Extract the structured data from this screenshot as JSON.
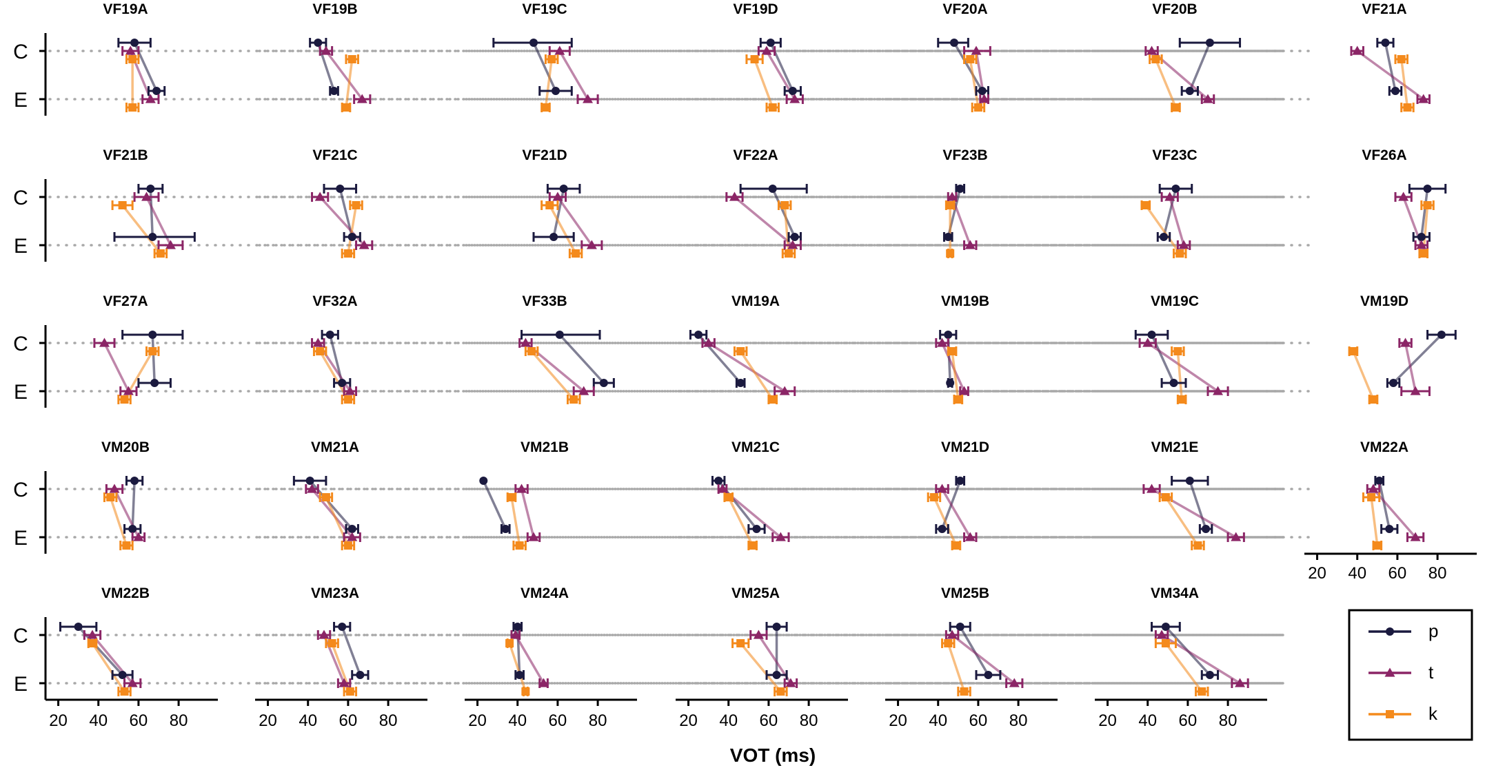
{
  "chart_data": {
    "type": "dot-range",
    "xlabel": "VOT (ms)",
    "categories": [
      "C",
      "E"
    ],
    "x_ticks": [
      "20",
      "40",
      "60",
      "80"
    ],
    "xlim": [
      15,
      92
    ],
    "series_meta": [
      {
        "name": "p",
        "color": "#1b1a3f",
        "marker": "circle"
      },
      {
        "name": "t",
        "color": "#8b2566",
        "marker": "triangle"
      },
      {
        "name": "k",
        "color": "#f48a1c",
        "marker": "square"
      }
    ],
    "panels": [
      {
        "title": "VF19A",
        "p": [
          [
            58,
            50,
            66
          ],
          [
            69,
            65,
            73
          ]
        ],
        "t": [
          [
            56,
            52,
            60
          ],
          [
            66,
            62,
            70
          ]
        ],
        "k": [
          [
            57,
            54,
            60
          ],
          [
            57,
            54,
            60
          ]
        ]
      },
      {
        "title": "VF19B",
        "p": [
          [
            45,
            41,
            49
          ],
          [
            53,
            51,
            55
          ]
        ],
        "t": [
          [
            49,
            46,
            52
          ],
          [
            67,
            63,
            71
          ]
        ],
        "k": [
          [
            62,
            59,
            65
          ],
          [
            59,
            57,
            61
          ]
        ]
      },
      {
        "title": "VF19C",
        "p": [
          [
            48,
            28,
            67
          ],
          [
            59,
            51,
            67
          ]
        ],
        "t": [
          [
            61,
            56,
            66
          ],
          [
            75,
            70,
            80
          ]
        ],
        "k": [
          [
            57,
            54,
            60
          ],
          [
            54,
            52,
            56
          ]
        ]
      },
      {
        "title": "VF19D",
        "p": [
          [
            61,
            56,
            66
          ],
          [
            72,
            68,
            76
          ]
        ],
        "t": [
          [
            59,
            55,
            63
          ],
          [
            73,
            69,
            77
          ]
        ],
        "k": [
          [
            53,
            49,
            57
          ],
          [
            62,
            59,
            65
          ]
        ]
      },
      {
        "title": "VF20A",
        "p": [
          [
            48,
            40,
            55
          ],
          [
            62,
            59,
            65
          ]
        ],
        "t": [
          [
            59,
            53,
            66
          ],
          [
            63,
            61,
            65
          ]
        ],
        "k": [
          [
            56,
            53,
            59
          ],
          [
            60,
            57,
            63
          ]
        ]
      },
      {
        "title": "VF20B",
        "p": [
          [
            71,
            56,
            86
          ],
          [
            61,
            57,
            65
          ]
        ],
        "t": [
          [
            42,
            39,
            45
          ],
          [
            70,
            67,
            73
          ]
        ],
        "k": [
          [
            44,
            41,
            47
          ],
          [
            54,
            52,
            56
          ]
        ]
      },
      {
        "title": "VF21A",
        "p": [
          [
            54,
            50,
            58
          ],
          [
            59,
            56,
            62
          ]
        ],
        "t": [
          [
            40,
            37,
            43
          ],
          [
            73,
            70,
            76
          ]
        ],
        "k": [
          [
            62,
            59,
            65
          ],
          [
            65,
            62,
            68
          ]
        ]
      },
      {
        "title": "VF21B",
        "p": [
          [
            66,
            60,
            72
          ],
          [
            67,
            48,
            88
          ]
        ],
        "t": [
          [
            64,
            58,
            70
          ],
          [
            76,
            70,
            82
          ]
        ],
        "k": [
          [
            52,
            47,
            57
          ],
          [
            71,
            68,
            74
          ]
        ]
      },
      {
        "title": "VF21C",
        "p": [
          [
            56,
            48,
            64
          ],
          [
            62,
            58,
            66
          ]
        ],
        "t": [
          [
            46,
            42,
            50
          ],
          [
            68,
            64,
            72
          ]
        ],
        "k": [
          [
            64,
            61,
            67
          ],
          [
            60,
            57,
            63
          ]
        ]
      },
      {
        "title": "VF21D",
        "p": [
          [
            63,
            55,
            71
          ],
          [
            58,
            48,
            68
          ]
        ],
        "t": [
          [
            60,
            56,
            64
          ],
          [
            77,
            72,
            82
          ]
        ],
        "k": [
          [
            56,
            52,
            60
          ],
          [
            69,
            66,
            72
          ]
        ]
      },
      {
        "title": "VF22A",
        "p": [
          [
            62,
            46,
            79
          ],
          [
            73,
            70,
            76
          ]
        ],
        "t": [
          [
            43,
            39,
            47
          ],
          [
            72,
            68,
            76
          ]
        ],
        "k": [
          [
            68,
            65,
            71
          ],
          [
            70,
            67,
            73
          ]
        ]
      },
      {
        "title": "VF23B",
        "p": [
          [
            51,
            49,
            53
          ],
          [
            45,
            43,
            47
          ]
        ],
        "t": [
          [
            47,
            45,
            49
          ],
          [
            56,
            53,
            59
          ]
        ],
        "k": [
          [
            46,
            44,
            48
          ],
          [
            46,
            45,
            47
          ]
        ]
      },
      {
        "title": "VF23C",
        "p": [
          [
            54,
            46,
            62
          ],
          [
            48,
            45,
            51
          ]
        ],
        "t": [
          [
            51,
            47,
            55
          ],
          [
            58,
            55,
            61
          ]
        ],
        "k": [
          [
            39,
            37,
            41
          ],
          [
            56,
            53,
            59
          ]
        ]
      },
      {
        "title": "VF26A",
        "p": [
          [
            75,
            66,
            84
          ],
          [
            72,
            68,
            76
          ]
        ],
        "t": [
          [
            63,
            59,
            67
          ],
          [
            72,
            69,
            75
          ]
        ],
        "k": [
          [
            75,
            72,
            78
          ],
          [
            73,
            71,
            75
          ]
        ]
      },
      {
        "title": "VF27A",
        "p": [
          [
            67,
            52,
            82
          ],
          [
            68,
            60,
            76
          ]
        ],
        "t": [
          [
            43,
            38,
            48
          ],
          [
            55,
            51,
            59
          ]
        ],
        "k": [
          [
            67,
            64,
            70
          ],
          [
            53,
            50,
            56
          ]
        ]
      },
      {
        "title": "VF32A",
        "p": [
          [
            51,
            47,
            55
          ],
          [
            57,
            53,
            61
          ]
        ],
        "t": [
          [
            45,
            42,
            48
          ],
          [
            61,
            58,
            64
          ]
        ],
        "k": [
          [
            46,
            43,
            49
          ],
          [
            60,
            57,
            63
          ]
        ]
      },
      {
        "title": "VF33B",
        "p": [
          [
            61,
            42,
            81
          ],
          [
            83,
            78,
            88
          ]
        ],
        "t": [
          [
            44,
            41,
            47
          ],
          [
            73,
            68,
            78
          ]
        ],
        "k": [
          [
            47,
            44,
            50
          ],
          [
            68,
            65,
            71
          ]
        ]
      },
      {
        "title": "VM19A",
        "p": [
          [
            25,
            21,
            29
          ],
          [
            46,
            44,
            48
          ]
        ],
        "t": [
          [
            30,
            27,
            33
          ],
          [
            68,
            63,
            73
          ]
        ],
        "k": [
          [
            46,
            43,
            49
          ],
          [
            62,
            60,
            64
          ]
        ]
      },
      {
        "title": "VM19B",
        "p": [
          [
            45,
            41,
            49
          ],
          [
            46,
            45,
            47
          ]
        ],
        "t": [
          [
            42,
            39,
            45
          ],
          [
            53,
            51,
            55
          ]
        ],
        "k": [
          [
            47,
            45,
            49
          ],
          [
            50,
            48,
            52
          ]
        ]
      },
      {
        "title": "VM19C",
        "p": [
          [
            42,
            34,
            50
          ],
          [
            53,
            47,
            59
          ]
        ],
        "t": [
          [
            40,
            36,
            44
          ],
          [
            75,
            70,
            80
          ]
        ],
        "k": [
          [
            55,
            52,
            58
          ],
          [
            57,
            55,
            59
          ]
        ]
      },
      {
        "title": "VM19D",
        "p": [
          [
            82,
            75,
            89
          ],
          [
            58,
            55,
            61
          ]
        ],
        "t": [
          [
            64,
            61,
            67
          ],
          [
            69,
            62,
            76
          ]
        ],
        "k": [
          [
            38,
            36,
            40
          ],
          [
            48,
            46,
            50
          ]
        ]
      },
      {
        "title": "VM20B",
        "p": [
          [
            58,
            54,
            62
          ],
          [
            57,
            53,
            61
          ]
        ],
        "t": [
          [
            48,
            44,
            52
          ],
          [
            60,
            57,
            63
          ]
        ],
        "k": [
          [
            46,
            43,
            49
          ],
          [
            54,
            51,
            57
          ]
        ]
      },
      {
        "title": "VM21A",
        "p": [
          [
            41,
            33,
            49
          ],
          [
            62,
            59,
            65
          ]
        ],
        "t": [
          [
            42,
            39,
            45
          ],
          [
            62,
            58,
            66
          ]
        ],
        "k": [
          [
            49,
            46,
            52
          ],
          [
            60,
            57,
            63
          ]
        ]
      },
      {
        "title": "VM21B",
        "p": [
          [
            23,
            23,
            23
          ],
          [
            34,
            32,
            36
          ]
        ],
        "t": [
          [
            42,
            39,
            45
          ],
          [
            48,
            45,
            51
          ]
        ],
        "k": [
          [
            37,
            35,
            39
          ],
          [
            41,
            38,
            44
          ]
        ]
      },
      {
        "title": "VM21C",
        "p": [
          [
            35,
            32,
            38
          ],
          [
            54,
            50,
            58
          ]
        ],
        "t": [
          [
            37,
            35,
            39
          ],
          [
            66,
            62,
            70
          ]
        ],
        "k": [
          [
            40,
            38,
            42
          ],
          [
            52,
            50,
            54
          ]
        ]
      },
      {
        "title": "VM21D",
        "p": [
          [
            51,
            49,
            53
          ],
          [
            42,
            39,
            45
          ]
        ],
        "t": [
          [
            42,
            39,
            45
          ],
          [
            56,
            53,
            59
          ]
        ],
        "k": [
          [
            38,
            35,
            41
          ],
          [
            49,
            47,
            51
          ]
        ]
      },
      {
        "title": "VM21E",
        "p": [
          [
            61,
            52,
            70
          ],
          [
            69,
            66,
            72
          ]
        ],
        "t": [
          [
            42,
            38,
            46
          ],
          [
            84,
            80,
            88
          ]
        ],
        "k": [
          [
            49,
            46,
            52
          ],
          [
            65,
            62,
            68
          ]
        ]
      },
      {
        "title": "VM22A",
        "p": [
          [
            51,
            49,
            53
          ],
          [
            56,
            52,
            60
          ]
        ],
        "t": [
          [
            48,
            45,
            51
          ],
          [
            69,
            65,
            73
          ]
        ],
        "k": [
          [
            47,
            43,
            51
          ],
          [
            50,
            48,
            52
          ]
        ]
      },
      {
        "title": "VM22B",
        "p": [
          [
            30,
            21,
            39
          ],
          [
            52,
            47,
            57
          ]
        ],
        "t": [
          [
            37,
            33,
            41
          ],
          [
            57,
            53,
            61
          ]
        ],
        "k": [
          [
            37,
            35,
            39
          ],
          [
            53,
            50,
            56
          ]
        ]
      },
      {
        "title": "VM23A",
        "p": [
          [
            57,
            53,
            61
          ],
          [
            66,
            62,
            70
          ]
        ],
        "t": [
          [
            48,
            45,
            51
          ],
          [
            58,
            55,
            61
          ]
        ],
        "k": [
          [
            52,
            49,
            55
          ],
          [
            61,
            58,
            64
          ]
        ]
      },
      {
        "title": "VM24A",
        "p": [
          [
            40,
            38,
            42
          ],
          [
            41,
            39,
            43
          ]
        ],
        "t": [
          [
            39,
            37,
            41
          ],
          [
            53,
            51,
            55
          ]
        ],
        "k": [
          [
            36,
            35,
            37
          ],
          [
            44,
            43,
            45
          ]
        ]
      },
      {
        "title": "VM25A",
        "p": [
          [
            64,
            59,
            69
          ],
          [
            64,
            59,
            69
          ]
        ],
        "t": [
          [
            55,
            51,
            59
          ],
          [
            71,
            68,
            74
          ]
        ],
        "k": [
          [
            46,
            42,
            50
          ],
          [
            66,
            63,
            69
          ]
        ]
      },
      {
        "title": "VM25B",
        "p": [
          [
            51,
            46,
            56
          ],
          [
            65,
            59,
            71
          ]
        ],
        "t": [
          [
            47,
            44,
            50
          ],
          [
            78,
            74,
            82
          ]
        ],
        "k": [
          [
            45,
            42,
            48
          ],
          [
            53,
            50,
            56
          ]
        ]
      },
      {
        "title": "VM34A",
        "p": [
          [
            49,
            42,
            56
          ],
          [
            71,
            67,
            75
          ]
        ],
        "t": [
          [
            47,
            44,
            50
          ],
          [
            86,
            82,
            90
          ]
        ],
        "k": [
          [
            49,
            44,
            54
          ],
          [
            67,
            64,
            70
          ]
        ]
      }
    ]
  }
}
